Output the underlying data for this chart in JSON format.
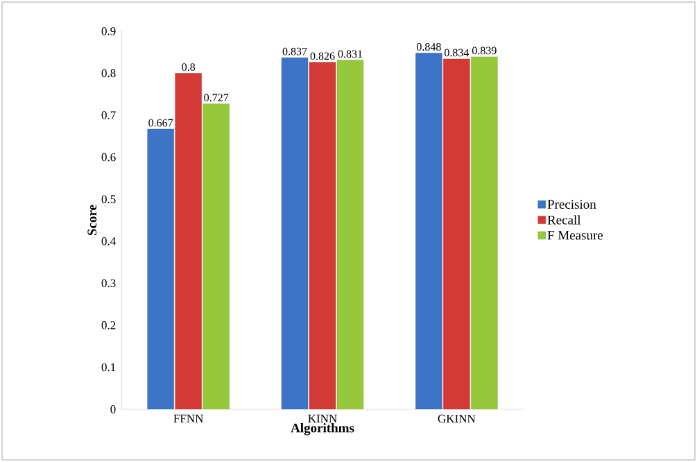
{
  "chart_data": {
    "type": "bar",
    "xlabel": "Algorithms",
    "ylabel": "Score",
    "categories": [
      "FFNN",
      "KINN",
      "GKINN"
    ],
    "series": [
      {
        "name": "Precision",
        "color": "#3d74c6",
        "values": [
          0.667,
          0.837,
          0.848
        ]
      },
      {
        "name": "Recall",
        "color": "#d43a35",
        "values": [
          0.8,
          0.826,
          0.834
        ]
      },
      {
        "name": "F Measure",
        "color": "#96c83c",
        "values": [
          0.727,
          0.831,
          0.839
        ]
      }
    ],
    "ylim": [
      0,
      0.9
    ],
    "yticks": [
      0,
      0.1,
      0.2,
      0.3,
      0.4,
      0.5,
      0.6,
      0.7,
      0.8,
      0.9
    ],
    "data_labels": true,
    "legend": "right",
    "grid": false
  }
}
